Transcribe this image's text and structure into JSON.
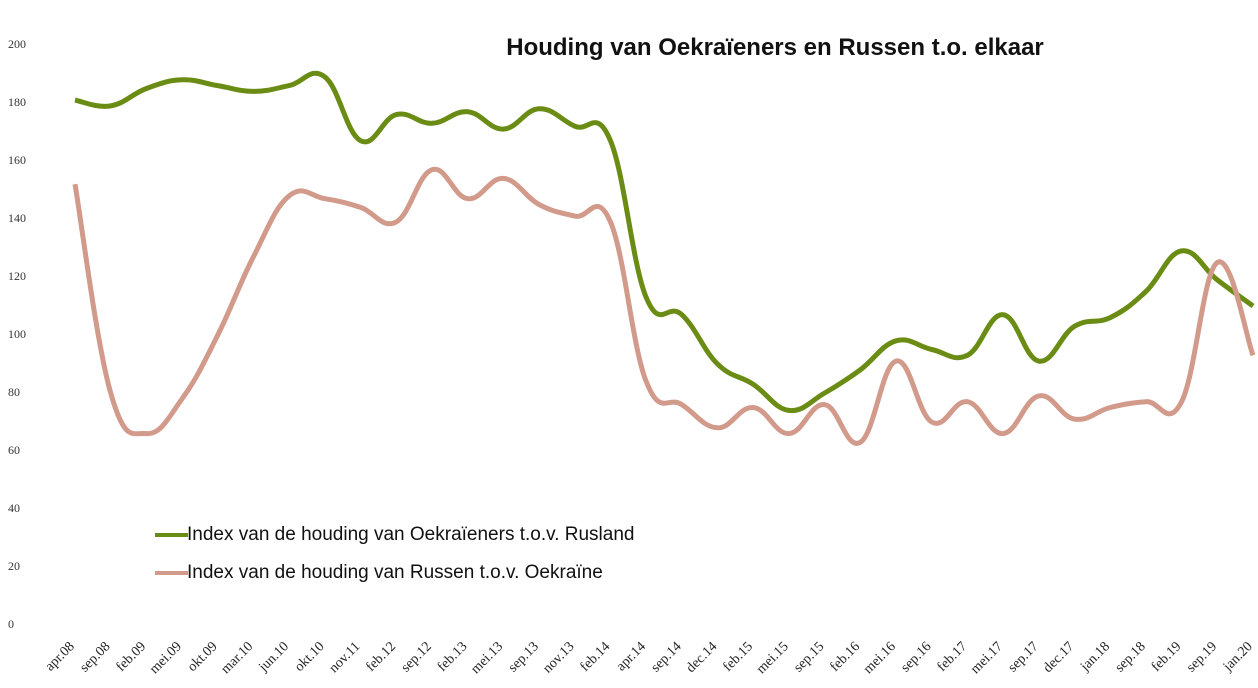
{
  "chart_data": {
    "type": "line",
    "title": "Houding van Oekraïeners en Russen t.o. elkaar",
    "categories": [
      "apr.08",
      "sep.08",
      "feb.09",
      "mei.09",
      "okt.09",
      "mar.10",
      "jun.10",
      "okt.10",
      "nov.11",
      "feb.12",
      "sep.12",
      "feb.13",
      "mei.13",
      "sep.13",
      "nov.13",
      "feb.14",
      "apr.14",
      "sep.14",
      "dec.14",
      "feb.15",
      "mei.15",
      "sep.15",
      "feb.16",
      "mei.16",
      "sep.16",
      "feb.17",
      "mei.17",
      "sep.17",
      "dec.17",
      "jan.18",
      "sep.18",
      "feb.19",
      "sep.19",
      "jan.20"
    ],
    "series": [
      {
        "name": "Index van de houding van Oekraïeners t.o.v. Rusland",
        "color": "#6a8c14",
        "values": [
          181,
          179,
          185,
          188,
          186,
          184,
          186,
          189,
          167,
          176,
          173,
          177,
          171,
          178,
          172,
          167,
          113,
          107,
          90,
          83,
          74,
          80,
          88,
          98,
          95,
          93,
          107,
          91,
          103,
          106,
          115,
          129,
          119,
          110
        ]
      },
      {
        "name": "Index van de houding van Russen t.o.v. Oekraïne",
        "color": "#d29a8a",
        "values": [
          152,
          80,
          66,
          78,
          100,
          127,
          148,
          147,
          144,
          139,
          157,
          147,
          154,
          145,
          141,
          139,
          84,
          76,
          68,
          75,
          66,
          76,
          63,
          91,
          70,
          77,
          66,
          79,
          71,
          75,
          77,
          77,
          125,
          93
        ]
      }
    ],
    "ylim": [
      0,
      200
    ],
    "yticks": [
      0,
      20,
      40,
      60,
      80,
      100,
      120,
      140,
      160,
      180,
      200
    ],
    "grid": false
  }
}
